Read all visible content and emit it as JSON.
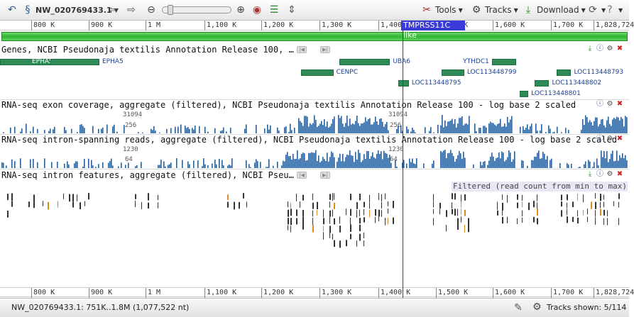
{
  "toolbar": {
    "accession": "NW_020769433.1",
    "tools_label": "Tools",
    "tracks_label": "Tracks",
    "download_label": "Download"
  },
  "ruler": {
    "ticks": [
      "800 K",
      "900 K",
      "1 M",
      "1,100 K",
      "1,200 K",
      "1,300 K",
      "1,400 K",
      "1,500 K",
      "1,600 K",
      "1,700 K",
      "1,828,724"
    ]
  },
  "highlight": {
    "label": "TMPRSS11C like"
  },
  "tracks": {
    "genes": {
      "title": "Genes, NCBI Pseudonaja textilis Annotation Release 100, …",
      "items": [
        {
          "name": "EPHA5",
          "start": 0.0,
          "end": 0.15,
          "label_pos": "inside"
        },
        {
          "name": "EPHA5",
          "start": 0.08,
          "end": 0.158,
          "label_pos": "right"
        },
        {
          "name": "UBA6",
          "start": 0.54,
          "end": 0.62,
          "label_pos": "right"
        },
        {
          "name": "YTHDC1",
          "start": 0.782,
          "end": 0.82,
          "label_pos": "left"
        },
        {
          "name": "CENPC",
          "start": 0.478,
          "end": 0.53,
          "label_pos": "right"
        },
        {
          "name": "LOC113448799",
          "start": 0.702,
          "end": 0.738,
          "label_pos": "right"
        },
        {
          "name": "LOC113448793",
          "start": 0.885,
          "end": 0.908,
          "label_pos": "right"
        },
        {
          "name": "LOC113448795",
          "start": 0.633,
          "end": 0.65,
          "label_pos": "right"
        },
        {
          "name": "LOC113448802",
          "start": 0.85,
          "end": 0.873,
          "label_pos": "right"
        },
        {
          "name": "LOC113448801",
          "start": 0.826,
          "end": 0.84,
          "label_pos": "right"
        }
      ]
    },
    "exon_coverage": {
      "title": "RNA-seq exon coverage, aggregate (filtered), NCBI Pseudonaja textilis Annotation Release 100 - log base 2 scaled",
      "max_label": "31094",
      "mid_label": "256"
    },
    "intron_reads": {
      "title": "RNA-seq intron-spanning reads, aggregate (filtered), NCBI Pseudonaja textilis Annotation Release 100 - log base 2 scaled",
      "max_label": "1230",
      "mid_label": "64"
    },
    "intron_features": {
      "title": "RNA-seq intron features, aggregate (filtered), NCBI Pseu…",
      "filter_note": "Filtered (read count from min to max)"
    }
  },
  "status": {
    "location": "NW_020769433.1: 751K..1.8M (1,077,522 nt)",
    "tracks_shown": "Tracks shown: 5/114"
  },
  "colors": {
    "gene": "#2e8b57",
    "coverage": "#2b5f96",
    "highlight": "#3a3ad8",
    "overview": "#2fb52f"
  }
}
